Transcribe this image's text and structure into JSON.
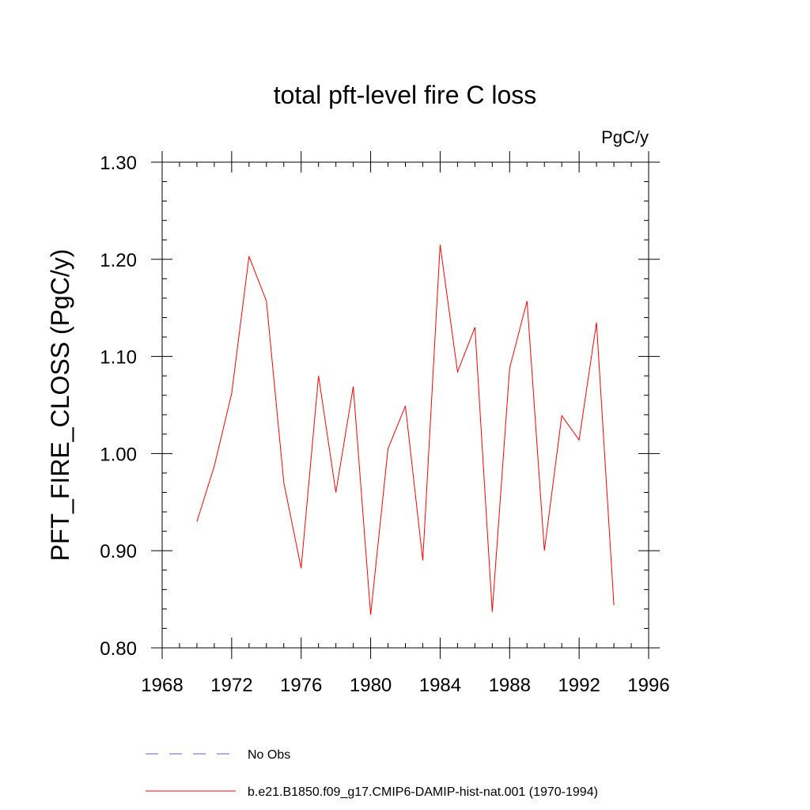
{
  "chart_data": {
    "type": "line",
    "title": "total pft-level fire C loss",
    "units_label": "PgC/y",
    "xlabel": "",
    "ylabel": "PFT_FIRE_CLOSS  (PgC/y)",
    "xlim": [
      1968,
      1996
    ],
    "ylim": [
      0.8,
      1.3
    ],
    "x_ticks": [
      1968,
      1972,
      1976,
      1980,
      1984,
      1988,
      1992,
      1996
    ],
    "x_tick_labels": [
      "1968",
      "1972",
      "1976",
      "1980",
      "1984",
      "1988",
      "1992",
      "1996"
    ],
    "y_ticks": [
      0.8,
      0.9,
      1.0,
      1.1,
      1.2,
      1.3
    ],
    "y_tick_labels": [
      "0.80",
      "0.90",
      "1.00",
      "1.10",
      "1.20",
      "1.30"
    ],
    "grid": false,
    "legend_placement": "bottom",
    "series": [
      {
        "name": "b.e21.B1850.f09_g17.CMIP6-DAMIP-hist-nat.001 (1970-1994)",
        "color": "#ff0000",
        "style": "solid",
        "x": [
          1970,
          1971,
          1972,
          1973,
          1974,
          1975,
          1976,
          1977,
          1978,
          1979,
          1980,
          1981,
          1982,
          1983,
          1984,
          1985,
          1986,
          1987,
          1988,
          1989,
          1990,
          1991,
          1992,
          1993,
          1994
        ],
        "values": [
          0.93,
          0.987,
          1.062,
          1.203,
          1.157,
          0.97,
          0.882,
          1.08,
          0.96,
          1.069,
          0.834,
          1.005,
          1.049,
          0.89,
          1.215,
          1.084,
          1.13,
          0.837,
          1.088,
          1.157,
          0.9,
          1.039,
          1.014,
          1.135,
          0.844
        ]
      }
    ],
    "legend": [
      {
        "label": "No Obs",
        "color": "#6a5acd",
        "style": "dashed"
      },
      {
        "label": "b.e21.B1850.f09_g17.CMIP6-DAMIP-hist-nat.001 (1970-1994)",
        "color": "#ff0000",
        "style": "solid"
      }
    ]
  }
}
